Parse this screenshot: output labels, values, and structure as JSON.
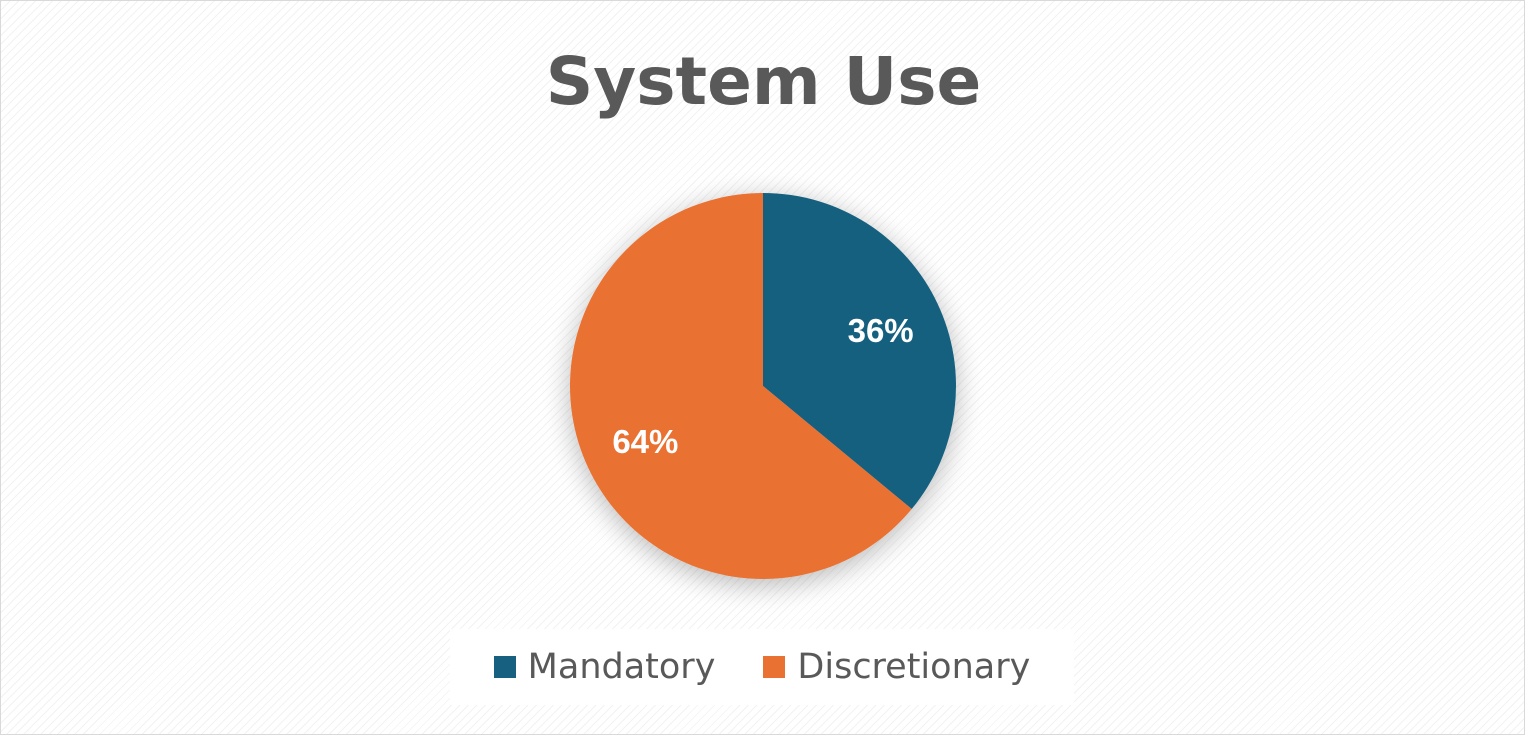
{
  "chart_data": {
    "type": "pie",
    "title": "System Use",
    "categories": [
      "Mandatory",
      "Discretionary"
    ],
    "values": [
      36,
      64
    ],
    "data_labels": [
      "36%",
      "64%"
    ],
    "colors": [
      "#17607f",
      "#e97132"
    ],
    "start_angle": "12 o'clock, clockwise",
    "legend": "bottom"
  }
}
